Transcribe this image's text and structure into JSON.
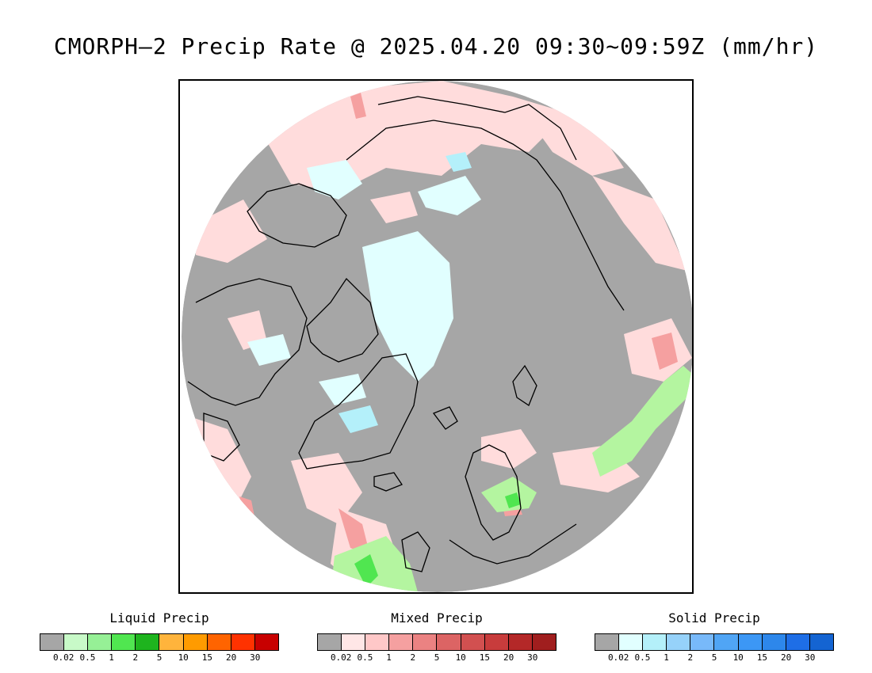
{
  "title": "CMORPH—2 Precip Rate @ 2025.04.20 09:30~09:59Z (mm/hr)",
  "legends": [
    {
      "label": "Liquid Precip",
      "colors": [
        "#a6a6a6",
        "#c8fac8",
        "#96f096",
        "#50e650",
        "#1eb41e",
        "#ffb43c",
        "#ff9b00",
        "#ff6400",
        "#ff3200",
        "#c80000"
      ],
      "ticks": [
        "0.02",
        "0.5",
        "1",
        "2",
        "5",
        "10",
        "15",
        "20",
        "30"
      ]
    },
    {
      "label": "Mixed Precip",
      "colors": [
        "#a6a6a6",
        "#ffe6e6",
        "#ffc8c8",
        "#f5a0a0",
        "#eb8282",
        "#dc6464",
        "#d25050",
        "#c83c3c",
        "#b42828",
        "#a01e1e"
      ],
      "ticks": [
        "0.02",
        "0.5",
        "1",
        "2",
        "5",
        "10",
        "15",
        "20",
        "30"
      ]
    },
    {
      "label": "Solid Precip",
      "colors": [
        "#a6a6a6",
        "#e1ffff",
        "#b4f0fa",
        "#96d2fa",
        "#78b9fa",
        "#50a5f5",
        "#3c97f5",
        "#2d87eb",
        "#1e6ee6",
        "#1464d2"
      ],
      "ticks": [
        "0.02",
        "0.5",
        "1",
        "2",
        "5",
        "10",
        "15",
        "20",
        "30"
      ]
    }
  ],
  "map": {
    "projection": "north polar stereographic",
    "colors": {
      "no_precip": "#a6a6a6",
      "mixed_light": "#ffdcdc",
      "mixed_medium": "#f5a0a0",
      "solid_light": "#e1ffff",
      "solid_medium": "#b4f0fa",
      "liquid_light": "#b4f5a0",
      "liquid_medium": "#50e650",
      "coastline": "#000000"
    }
  }
}
